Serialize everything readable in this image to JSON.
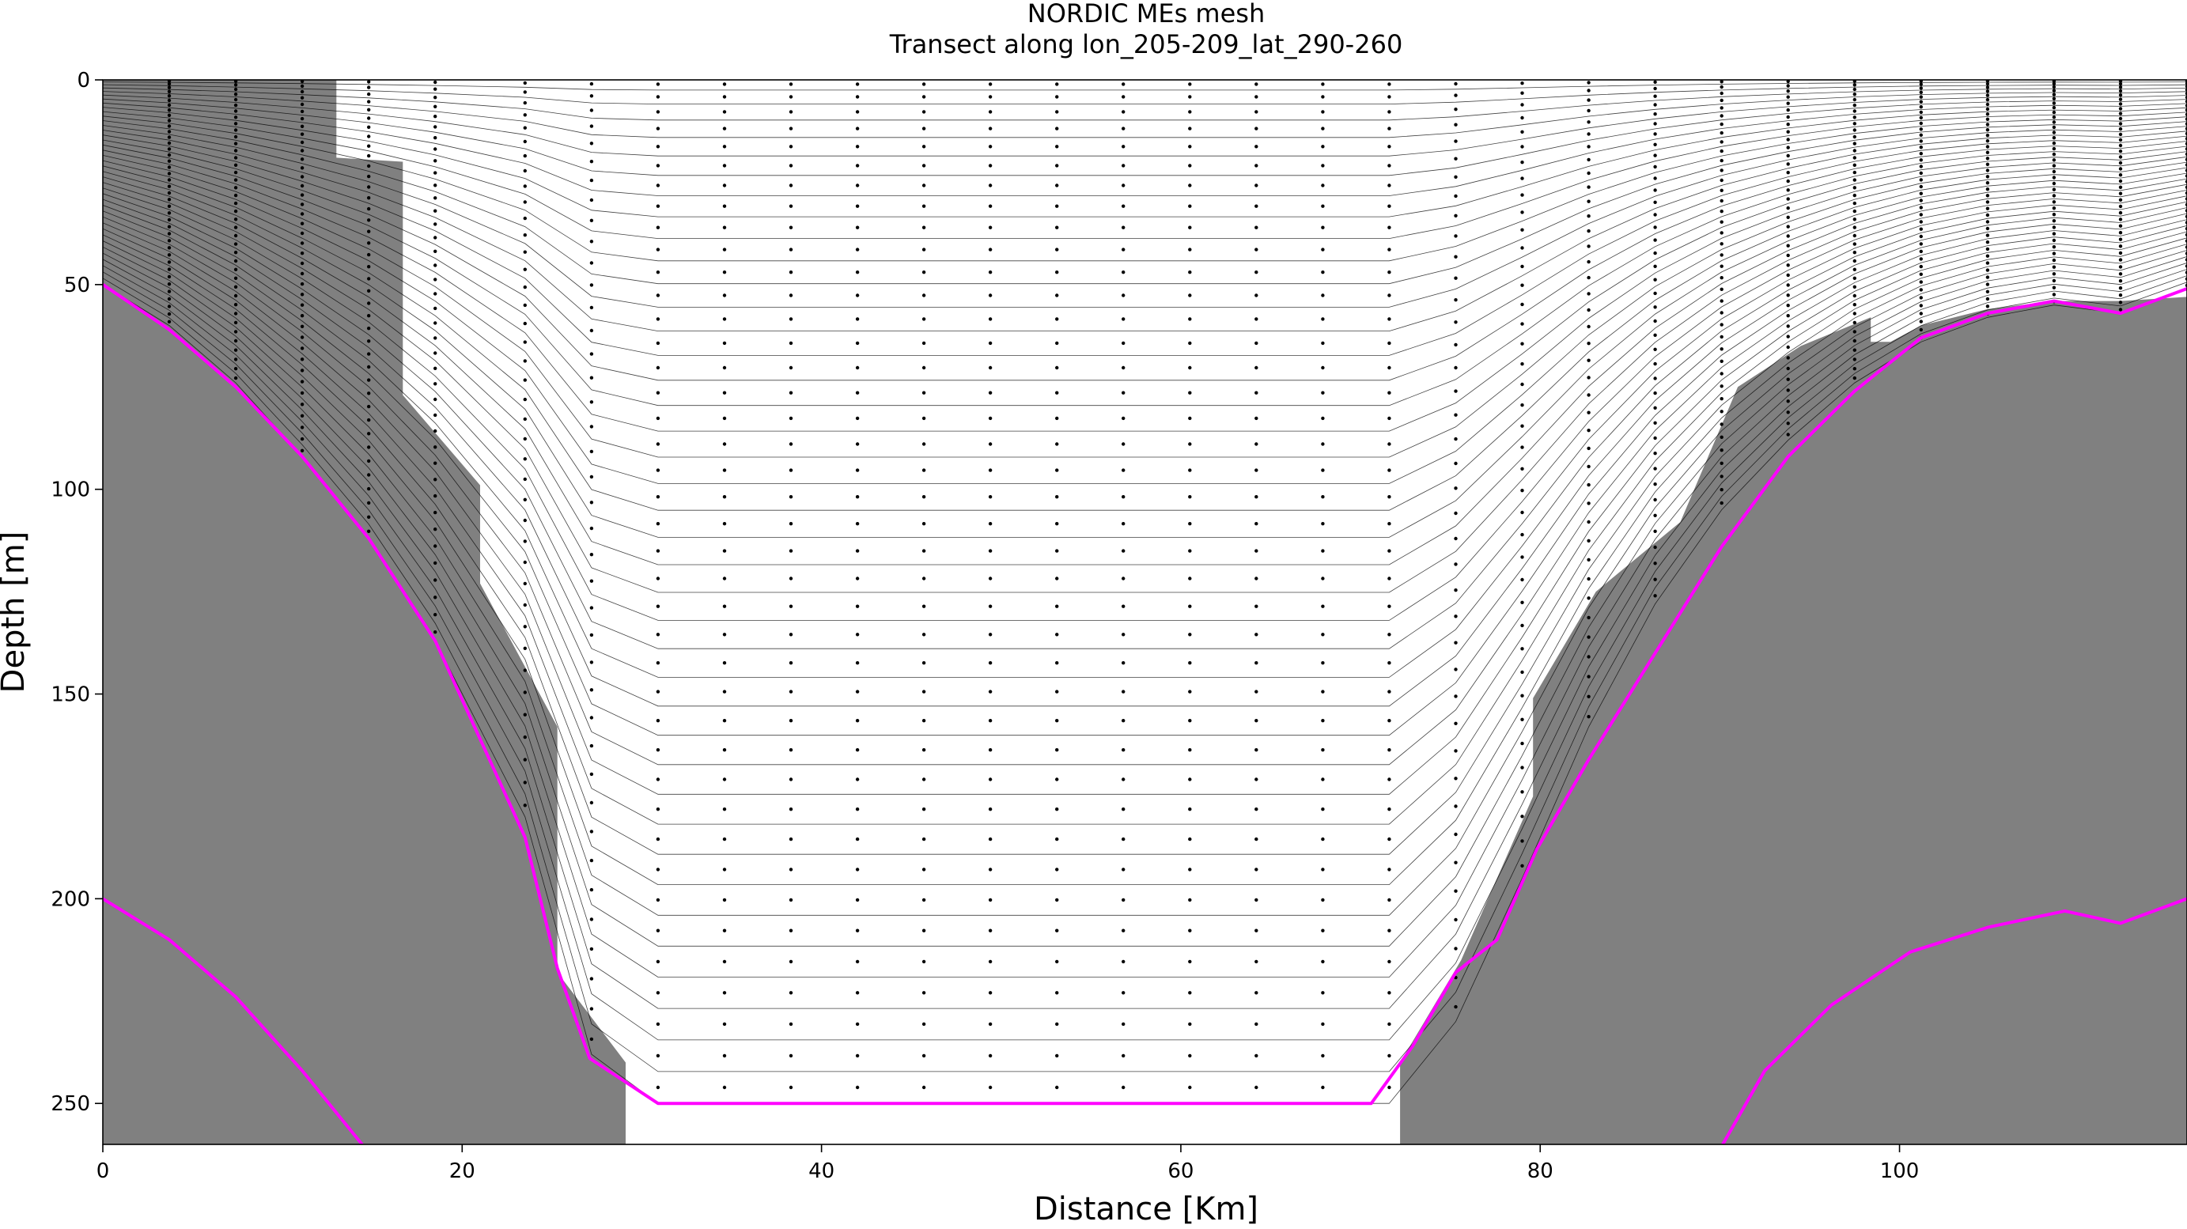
{
  "chart_data": {
    "type": "line",
    "title": "NORDIC MEs mesh",
    "subtitle": "Transect along lon_205-209_lat_290-260",
    "xlabel": "Distance [Km]",
    "ylabel": "Depth [m]",
    "xlim": [
      0,
      116
    ],
    "ylim": [
      260,
      0
    ],
    "y_inverted": true,
    "grid": false,
    "xticks": [
      0,
      20,
      40,
      60,
      80,
      100
    ],
    "yticks": [
      0,
      50,
      100,
      150,
      200,
      250
    ],
    "colors": {
      "land": "#808080",
      "envelope": "#ff00ff",
      "levels": "#000000",
      "background": "#ffffff"
    },
    "num_levels": 40,
    "stations_x": [
      0,
      3.7,
      7.4,
      11.1,
      14.8,
      18.5,
      23.5,
      27.2,
      30.9,
      34.6,
      38.3,
      42.0,
      45.7,
      49.4,
      53.1,
      56.8,
      60.5,
      64.2,
      67.9,
      71.6,
      75.3,
      79.0,
      82.7,
      86.4,
      90.1,
      93.8,
      97.5,
      101.2,
      104.9,
      108.6,
      112.3,
      116.0
    ],
    "mesh_bottom_depth": [
      50,
      60,
      74,
      92,
      112,
      137,
      180,
      238,
      250,
      250,
      250,
      250,
      250,
      250,
      250,
      250,
      250,
      250,
      250,
      250,
      230,
      195,
      158,
      128,
      105,
      88,
      74,
      64,
      58,
      55,
      57,
      51
    ],
    "series": [
      {
        "name": "",
        "x": [
          0,
          3.7,
          7.4,
          11.1,
          14.8,
          18.5,
          23.5,
          25.3,
          27.1,
          30.9,
          70.6,
          72.9,
          75.3,
          77.6,
          79.8,
          82.7,
          86.4,
          90.1,
          93.8,
          97.5,
          101.2,
          104.9,
          108.6,
          112.3,
          116.0
        ],
        "y": [
          50,
          61,
          75,
          92,
          112,
          137,
          185,
          217,
          239,
          250,
          250,
          236,
          218,
          210,
          188,
          166,
          140,
          114,
          92,
          76,
          63,
          57,
          54,
          57,
          51
        ]
      },
      {
        "name": "",
        "x": [
          0,
          3.7,
          7.4,
          11.1,
          14.8,
          89.9,
          92.5,
          96.2,
          100.6,
          104.9,
          109.2,
          112.3,
          116.0
        ],
        "y": [
          200,
          210,
          224,
          242,
          262,
          262,
          242,
          226,
          213,
          207,
          203,
          206,
          200
        ]
      }
    ],
    "land_outline_left": {
      "x": [
        0,
        13,
        13,
        16.7,
        16.7,
        21,
        21,
        25.3,
        25.3,
        29.1,
        29.1
      ],
      "y": [
        0,
        0,
        19,
        20,
        77,
        99,
        123,
        158,
        218,
        240,
        260
      ]
    },
    "land_outline_right": {
      "x": [
        72.2,
        72.2,
        75.6,
        77.6,
        79.6,
        79.6,
        83.1,
        83.1,
        87.8,
        87.8,
        91.0,
        91.0,
        94.5,
        94.5,
        98.4,
        98.4,
        99.5,
        99.5,
        101.2,
        101.2,
        104.9,
        104.9,
        108.6,
        112.3,
        116.0
      ],
      "y": [
        260,
        240,
        215,
        195,
        175,
        151,
        125,
        125,
        108,
        108,
        75,
        75,
        65,
        65,
        58,
        64,
        64,
        64,
        60,
        60,
        56,
        56,
        54,
        54,
        53
      ]
    }
  }
}
